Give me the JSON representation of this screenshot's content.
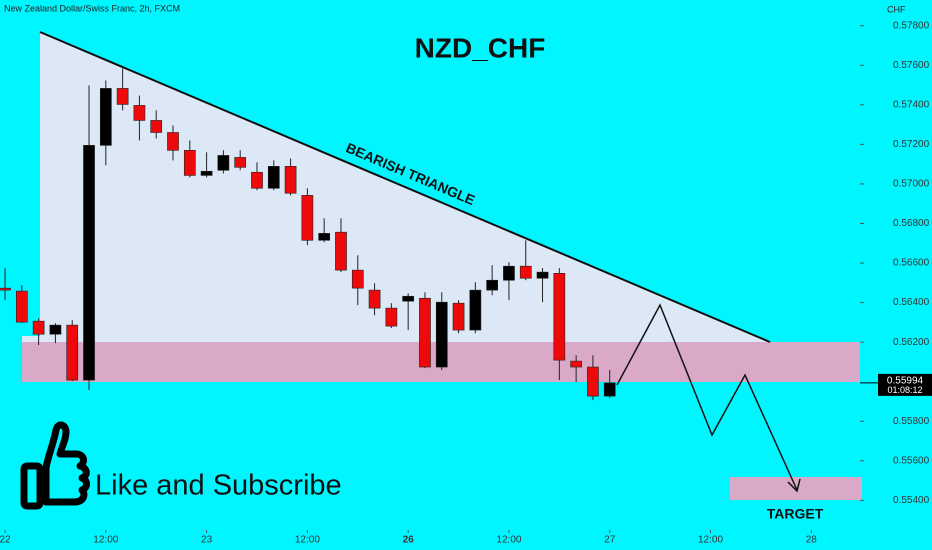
{
  "chart_data": {
    "type": "candlestick",
    "title": "NZD_CHF",
    "subtitle": "New Zealand Dollar/Swiss Franc, 2h, FXCM",
    "y_axis_label": "CHF",
    "annotations": [
      "BEARISH TRIANGLE",
      "Like and Subscribe",
      "TARGET"
    ],
    "x": [
      0,
      1,
      2,
      3,
      4,
      5,
      6,
      7,
      8,
      9,
      10,
      11,
      12,
      13,
      14,
      15,
      16,
      17,
      18,
      19,
      20,
      21,
      22,
      23,
      24,
      25,
      26,
      27,
      28,
      29,
      30,
      31,
      32,
      33,
      34,
      35,
      36
    ],
    "open": [
      0.56473,
      0.56458,
      0.56306,
      0.5624,
      0.56286,
      0.56008,
      0.57195,
      0.57483,
      0.57397,
      0.57321,
      0.5726,
      0.5717,
      0.57043,
      0.57069,
      0.57134,
      0.57059,
      0.56978,
      0.57089,
      0.56942,
      0.56715,
      0.56756,
      0.56564,
      0.56463,
      0.56372,
      0.56407,
      0.56422,
      0.56074,
      0.56397,
      0.56261,
      0.56463,
      0.56513,
      0.56584,
      0.56523,
      0.56548,
      0.56104,
      0.56074,
      0.55927
    ],
    "high": [
      0.56574,
      0.56488,
      0.56321,
      0.56296,
      0.56311,
      0.57498,
      0.57523,
      0.57584,
      0.57447,
      0.57372,
      0.57296,
      0.5722,
      0.5716,
      0.5717,
      0.5717,
      0.57109,
      0.57119,
      0.57129,
      0.56978,
      0.56826,
      0.56826,
      0.56639,
      0.56498,
      0.56397,
      0.56447,
      0.56452,
      0.56452,
      0.56412,
      0.56503,
      0.56589,
      0.56604,
      0.56715,
      0.56574,
      0.56574,
      0.56134,
      0.56134,
      0.56059
    ],
    "low": [
      0.56412,
      0.56296,
      0.56185,
      0.56195,
      0.56003,
      0.55958,
      0.57094,
      0.57372,
      0.5722,
      0.5723,
      0.57119,
      0.57033,
      0.57033,
      0.57053,
      0.57069,
      0.56968,
      0.56968,
      0.56942,
      0.5669,
      0.56705,
      0.56554,
      0.56387,
      0.56336,
      0.56271,
      0.56261,
      0.56069,
      0.56059,
      0.56245,
      0.56245,
      0.56437,
      0.56412,
      0.56513,
      0.56402,
      0.56008,
      0.55998,
      0.55907,
      0.55917
    ],
    "close": [
      0.56463,
      0.56301,
      0.5624,
      0.56286,
      0.56008,
      0.57195,
      0.57483,
      0.57402,
      0.57321,
      0.5726,
      0.5717,
      0.57043,
      0.57064,
      0.57144,
      0.57084,
      0.56978,
      0.57089,
      0.56953,
      0.56715,
      0.5675,
      0.56564,
      0.56473,
      0.56372,
      0.56281,
      0.56432,
      0.56074,
      0.56402,
      0.56261,
      0.56463,
      0.56513,
      0.56584,
      0.56523,
      0.56554,
      0.56109,
      0.56074,
      0.55927,
      0.55994
    ],
    "up_color": "#000000",
    "down_color": "#ee0a0a",
    "wick_color": "#222222",
    "last_price": 0.55994,
    "countdown": "01:08:12",
    "xlim": [
      -0.3,
      50.9
    ],
    "xticks": [
      {
        "value": 0,
        "label": "22"
      },
      {
        "value": 6,
        "label": "12:00"
      },
      {
        "value": 12,
        "label": "23"
      },
      {
        "value": 18,
        "label": "12:00"
      },
      {
        "value": 24,
        "label": "26"
      },
      {
        "value": 30,
        "label": "12:00"
      },
      {
        "value": 36,
        "label": "27"
      },
      {
        "value": 42,
        "label": "12:00"
      },
      {
        "value": 48,
        "label": "28"
      }
    ],
    "ylim": [
      0.5525,
      0.5793
    ],
    "yticks": [
      {
        "value": 0.578,
        "label": "0.57800"
      },
      {
        "value": 0.576,
        "label": "0.57600"
      },
      {
        "value": 0.574,
        "label": "0.57400"
      },
      {
        "value": 0.572,
        "label": "0.57200"
      },
      {
        "value": 0.57,
        "label": "0.57000"
      },
      {
        "value": 0.568,
        "label": "0.56800"
      },
      {
        "value": 0.566,
        "label": "0.56600"
      },
      {
        "value": 0.564,
        "label": "0.56400"
      },
      {
        "value": 0.562,
        "label": "0.56200"
      },
      {
        "value": 0.558,
        "label": "0.55800"
      },
      {
        "value": 0.556,
        "label": "0.55600"
      },
      {
        "value": 0.554,
        "label": "0.55400"
      }
    ]
  }
}
